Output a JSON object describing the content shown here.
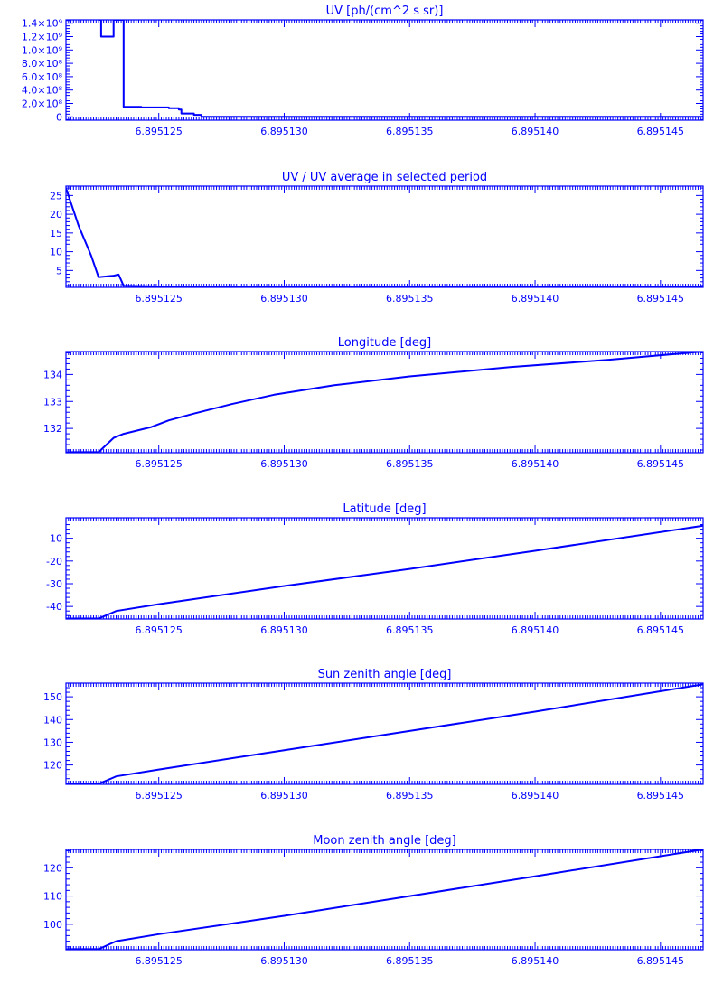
{
  "chart_data": [
    {
      "type": "line",
      "title": "UV [ph/(cm^2 s sr)]",
      "xlim": [
        6.8951213,
        6.8951467
      ],
      "ylim": [
        -50000000,
        1450000000
      ],
      "x_ticks": [
        6.895125,
        6.89513,
        6.895135,
        6.89514,
        6.895145
      ],
      "x_tick_labels": [
        "6.895125",
        "6.895130",
        "6.895135",
        "6.895140",
        "6.895145"
      ],
      "y_ticks": [
        0,
        200000000,
        400000000,
        600000000,
        800000000,
        1000000000,
        1200000000,
        1400000000
      ],
      "y_tick_labels": [
        "0",
        "2.0×10⁸",
        "4.0×10⁸",
        "6.0×10⁸",
        "8.0×10⁸",
        "1.0×10⁹",
        "1.2×10⁹",
        "1.4×10⁹"
      ],
      "step": true,
      "points": [
        [
          6.8951226,
          1450000000
        ],
        [
          6.8951227,
          1200000000
        ],
        [
          6.8951231,
          1200000000
        ],
        [
          6.8951232,
          1450000000
        ],
        [
          6.8951235,
          1450000000
        ],
        [
          6.8951236,
          150000000
        ],
        [
          6.8951243,
          140000000
        ],
        [
          6.8951254,
          130000000
        ],
        [
          6.8951258,
          110000000
        ],
        [
          6.8951259,
          50000000
        ],
        [
          6.8951264,
          30000000
        ],
        [
          6.8951267,
          0
        ],
        [
          6.8951467,
          0
        ]
      ]
    },
    {
      "type": "line",
      "title": "UV / UV average in selected period",
      "xlim": [
        6.8951213,
        6.8951467
      ],
      "ylim": [
        0.5,
        27.5
      ],
      "x_ticks": [
        6.895125,
        6.89513,
        6.895135,
        6.89514,
        6.895145
      ],
      "x_tick_labels": [
        "6.895125",
        "6.895130",
        "6.895135",
        "6.895140",
        "6.895145"
      ],
      "y_ticks": [
        5,
        10,
        15,
        20,
        25
      ],
      "y_tick_labels": [
        "5",
        "10",
        "15",
        "20",
        "25"
      ],
      "points": [
        [
          6.8951213,
          27
        ],
        [
          6.8951218,
          17
        ],
        [
          6.8951223,
          9
        ],
        [
          6.8951226,
          3.2
        ],
        [
          6.8951232,
          3.6
        ],
        [
          6.8951234,
          3.9
        ],
        [
          6.8951236,
          0.9
        ],
        [
          6.8951254,
          0.7
        ],
        [
          6.8951267,
          0.55
        ],
        [
          6.8951467,
          0.55
        ]
      ]
    },
    {
      "type": "line",
      "title": "Longitude [deg]",
      "xlim": [
        6.8951213,
        6.8951467
      ],
      "ylim": [
        131.1,
        134.85
      ],
      "x_ticks": [
        6.895125,
        6.89513,
        6.895135,
        6.89514,
        6.895145
      ],
      "x_tick_labels": [
        "6.895125",
        "6.895130",
        "6.895135",
        "6.895140",
        "6.895145"
      ],
      "y_ticks": [
        132,
        133,
        134
      ],
      "y_tick_labels": [
        "132",
        "133",
        "134"
      ],
      "points": [
        [
          6.8951213,
          131.12
        ],
        [
          6.8951226,
          131.12
        ],
        [
          6.8951232,
          131.65
        ],
        [
          6.8951236,
          131.8
        ],
        [
          6.8951247,
          132.05
        ],
        [
          6.8951254,
          132.3
        ],
        [
          6.8951264,
          132.55
        ],
        [
          6.8951279,
          132.9
        ],
        [
          6.8951296,
          133.25
        ],
        [
          6.895132,
          133.6
        ],
        [
          6.895135,
          133.93
        ],
        [
          6.895139,
          134.27
        ],
        [
          6.895143,
          134.55
        ],
        [
          6.8951467,
          134.85
        ]
      ]
    },
    {
      "type": "line",
      "title": "Latitude [deg]",
      "xlim": [
        6.8951213,
        6.8951467
      ],
      "ylim": [
        -45.5,
        -1
      ],
      "x_ticks": [
        6.895125,
        6.89513,
        6.895135,
        6.89514,
        6.895145
      ],
      "x_tick_labels": [
        "6.895125",
        "6.895130",
        "6.895135",
        "6.895140",
        "6.895145"
      ],
      "y_ticks": [
        -40,
        -30,
        -20,
        -10
      ],
      "y_tick_labels": [
        "-40",
        "-30",
        "-20",
        "-10"
      ],
      "points": [
        [
          6.8951213,
          -45.3
        ],
        [
          6.8951226,
          -45.3
        ],
        [
          6.8951233,
          -42
        ],
        [
          6.895125,
          -39
        ],
        [
          6.89513,
          -31
        ],
        [
          6.895135,
          -23.5
        ],
        [
          6.89514,
          -15.5
        ],
        [
          6.8951467,
          -4.5
        ]
      ]
    },
    {
      "type": "line",
      "title": "Sun zenith angle [deg]",
      "xlim": [
        6.8951213,
        6.8951467
      ],
      "ylim": [
        111.5,
        156
      ],
      "x_ticks": [
        6.895125,
        6.89513,
        6.895135,
        6.89514,
        6.895145
      ],
      "x_tick_labels": [
        "6.895125",
        "6.895130",
        "6.895135",
        "6.895140",
        "6.895145"
      ],
      "y_ticks": [
        120,
        130,
        140,
        150
      ],
      "y_tick_labels": [
        "120",
        "130",
        "140",
        "150"
      ],
      "points": [
        [
          6.8951213,
          111.7
        ],
        [
          6.8951226,
          111.7
        ],
        [
          6.8951233,
          115
        ],
        [
          6.895125,
          118
        ],
        [
          6.89513,
          126.5
        ],
        [
          6.895135,
          135
        ],
        [
          6.89514,
          143.5
        ],
        [
          6.8951467,
          155.5
        ]
      ]
    },
    {
      "type": "line",
      "title": "Moon zenith angle [deg]",
      "xlim": [
        6.8951213,
        6.8951467
      ],
      "ylim": [
        91,
        126.5
      ],
      "x_ticks": [
        6.895125,
        6.89513,
        6.895135,
        6.89514,
        6.895145
      ],
      "x_tick_labels": [
        "6.895125",
        "6.895130",
        "6.895135",
        "6.895140",
        "6.895145"
      ],
      "y_ticks": [
        100,
        110,
        120
      ],
      "y_tick_labels": [
        "100",
        "110",
        "120"
      ],
      "points": [
        [
          6.8951213,
          91.2
        ],
        [
          6.8951226,
          91.2
        ],
        [
          6.8951233,
          94
        ],
        [
          6.895125,
          96.5
        ],
        [
          6.89513,
          103
        ],
        [
          6.895135,
          110
        ],
        [
          6.89514,
          117
        ],
        [
          6.8951467,
          126.5
        ]
      ]
    }
  ]
}
